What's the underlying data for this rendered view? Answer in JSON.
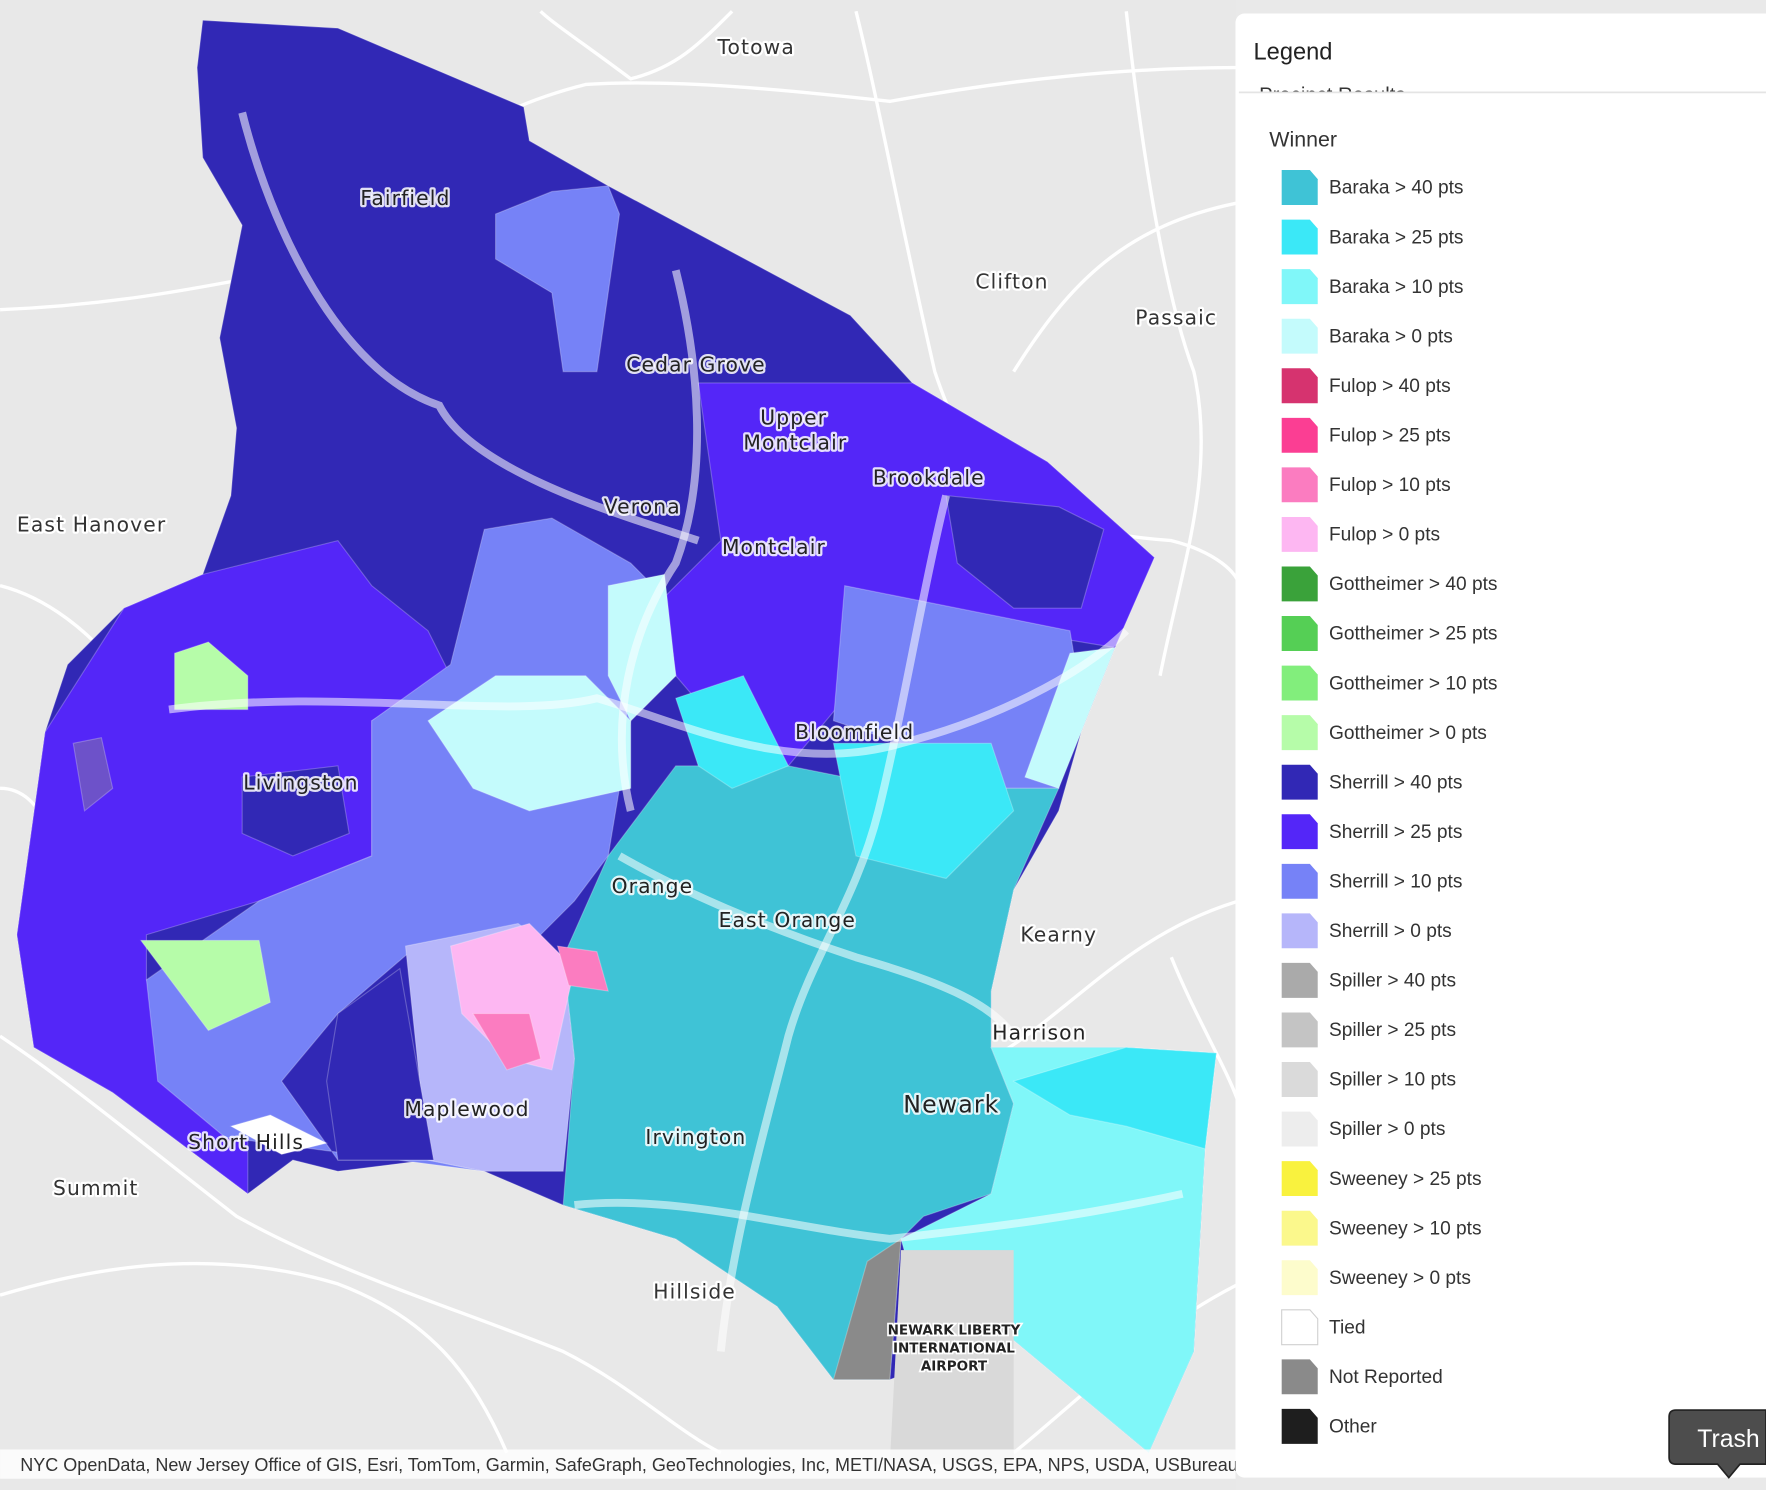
{
  "map": {
    "places": [
      "Totowa",
      "Fairfield",
      "Clifton",
      "Passaic",
      "Cedar Grove",
      "Upper",
      "Montclair",
      "Brookdale",
      "Verona",
      "Montclair",
      "East Hanover",
      "Bloomfield",
      "Livingston",
      "Orange",
      "East Orange",
      "Kearny",
      "Harrison",
      "Newark",
      "Maplewood",
      "Irvington",
      "Short Hills",
      "Summit",
      "Hillside"
    ],
    "airport": [
      "NEWARK LIBERTY",
      "INTERNATIONAL",
      "AIRPORT"
    ]
  },
  "legend": {
    "title": "Legend",
    "section": "Precinct Results",
    "group": "Winner",
    "items": [
      {
        "label": "Baraka > 40 pts",
        "color": "#3fc3d6"
      },
      {
        "label": "Baraka > 25 pts",
        "color": "#3be8f7"
      },
      {
        "label": "Baraka > 10 pts",
        "color": "#80f7f9"
      },
      {
        "label": "Baraka > 0 pts",
        "color": "#c4fbfc"
      },
      {
        "label": "Fulop > 40 pts",
        "color": "#d6336f"
      },
      {
        "label": "Fulop > 25 pts",
        "color": "#fb3e93"
      },
      {
        "label": "Fulop > 10 pts",
        "color": "#fb7cc0"
      },
      {
        "label": "Fulop > 0 pts",
        "color": "#fdb7f2"
      },
      {
        "label": "Gottheimer > 40 pts",
        "color": "#3aa23a"
      },
      {
        "label": "Gottheimer > 25 pts",
        "color": "#55cf55"
      },
      {
        "label": "Gottheimer > 10 pts",
        "color": "#82ee7c"
      },
      {
        "label": "Gottheimer > 0 pts",
        "color": "#b6fca9"
      },
      {
        "label": "Sherrill > 40 pts",
        "color": "#3128b5"
      },
      {
        "label": "Sherrill > 25 pts",
        "color": "#5426f8"
      },
      {
        "label": "Sherrill > 10 pts",
        "color": "#7682f7"
      },
      {
        "label": "Sherrill > 0 pts",
        "color": "#b6b6fa"
      },
      {
        "label": "Spiller > 40 pts",
        "color": "#aaaaaa"
      },
      {
        "label": "Spiller > 25 pts",
        "color": "#c4c4c4"
      },
      {
        "label": "Spiller > 10 pts",
        "color": "#dadada"
      },
      {
        "label": "Spiller > 0 pts",
        "color": "#ededed"
      },
      {
        "label": "Sweeney > 25 pts",
        "color": "#f9f23e"
      },
      {
        "label": "Sweeney > 10 pts",
        "color": "#fbf88c"
      },
      {
        "label": "Sweeney > 0 pts",
        "color": "#fdfccc"
      },
      {
        "label": "Tied",
        "color": "#ffffff"
      },
      {
        "label": "Not Reported",
        "color": "#8a8a8a"
      },
      {
        "label": "Other",
        "color": "#1e1e1e"
      }
    ]
  },
  "attribution": "NYC OpenData, New Jersey Office of GIS, Esri, TomTom, Garmin, SafeGraph, GeoTechnologies, Inc, METI/NASA, USGS, EPA, NPS, USDA, USBureau",
  "tooltip": "Trash"
}
